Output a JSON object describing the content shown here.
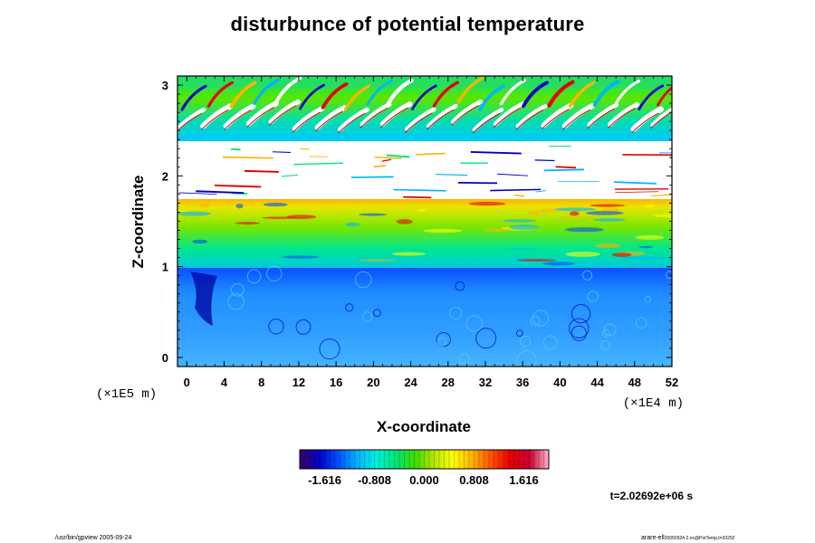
{
  "chart_data": {
    "type": "heatmap",
    "title": "disturbunce of potential temperature",
    "xlabel": "X-coordinate",
    "ylabel": "Z-coordinate",
    "x_units": "(×1E4 m)",
    "y_units": "(×1E5 m)",
    "xlim": [
      -1,
      52
    ],
    "ylim": [
      -0.1,
      3.1
    ],
    "x_ticks": [
      "0",
      "4",
      "8",
      "12",
      "16",
      "20",
      "24",
      "28",
      "32",
      "36",
      "40",
      "44",
      "48",
      "52"
    ],
    "y_ticks": [
      "0",
      "1",
      "2",
      "3"
    ],
    "colorbar": {
      "range": [
        -2.02,
        2.02
      ],
      "tick_labels": [
        "-1.616",
        "-0.808",
        "0.000",
        "0.808",
        "1.616"
      ],
      "colors": [
        "#3a0066",
        "#0000c8",
        "#0050ff",
        "#00b4ff",
        "#00f0dc",
        "#00e678",
        "#3cdc00",
        "#b4e600",
        "#ffff00",
        "#ffb400",
        "#ff5000",
        "#e60000",
        "#c80032",
        "#ffb4c8"
      ]
    },
    "layers": [
      {
        "z_from": -0.1,
        "z_to": 0.9,
        "value": -1.0
      },
      {
        "z_from": 0.9,
        "z_to": 1.35,
        "value": 0.15
      },
      {
        "z_from": 1.35,
        "z_to": 1.75,
        "value": 0.9
      },
      {
        "z_from": 1.75,
        "z_to": 2.45,
        "value": "out of range (blank)"
      },
      {
        "z_from": 2.45,
        "z_to": 3.1,
        "value": 0.3
      }
    ],
    "time_label": "t=2.02692e+06 s"
  },
  "footer": {
    "left": "/usr/bin/gpview 2005-09-24",
    "right": "arare-ell",
    "right_detail": "20050924-2.nc@PotTemp,t=20292"
  },
  "colors": {
    "background": "#ffffff",
    "frame": "#000000",
    "lower_layer": "#1e78ff",
    "mid_layer": "#00e678",
    "upper_band": "#c8e600"
  }
}
